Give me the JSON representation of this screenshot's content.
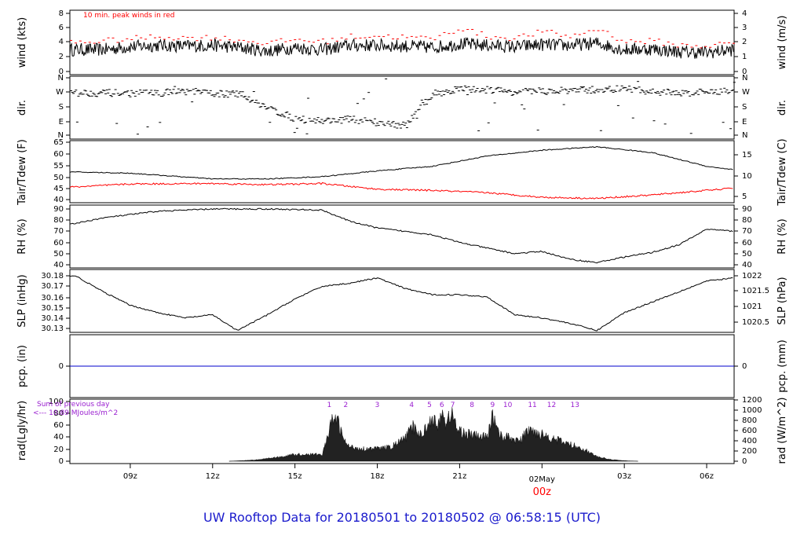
{
  "footer": {
    "title": "UW Rooftop Data for 20180501  to  20180502 @ 06:58:15  (UTC)"
  },
  "colors": {
    "primary": "#000000",
    "peak": "#ff0000",
    "dew": "#ff0000",
    "precip": "#0000cc",
    "annotation": "#9a1fd0",
    "footer": "#1a1acc"
  },
  "x_axis": {
    "ticks": [
      "09z",
      "12z",
      "15z",
      "18z",
      "21z",
      "02May",
      "03z",
      "06z"
    ],
    "tick_hours": [
      9,
      12,
      15,
      18,
      21,
      24,
      27,
      30
    ],
    "date_marker_sub": "00z",
    "range_hours": [
      6.8,
      31.0
    ]
  },
  "chart_data": [
    {
      "type": "line",
      "panel": "wind",
      "ylabel_left": "wind (kts)",
      "ylabel_right": "wind (m/s)",
      "ylim": [
        0,
        8
      ],
      "yticks_left": [
        "0",
        "2",
        "4",
        "6",
        "8"
      ],
      "yticks_right": [
        "0",
        "1",
        "2",
        "3",
        "4"
      ],
      "annotation": "10 min. peak winds in red",
      "series": [
        {
          "name": "wind",
          "x": [
            7,
            8,
            9,
            10,
            11,
            12,
            13,
            14,
            15,
            16,
            17,
            18,
            19,
            20,
            21,
            22,
            23,
            24,
            25,
            26,
            27,
            28,
            29,
            30,
            31
          ],
          "values": [
            3.0,
            3.0,
            3.4,
            3.6,
            3.5,
            3.6,
            3.3,
            2.8,
            3.3,
            3.0,
            3.6,
            3.6,
            3.5,
            3.3,
            3.8,
            3.6,
            3.4,
            3.7,
            3.6,
            3.9,
            3.0,
            3.1,
            2.7,
            2.6,
            3.0
          ]
        },
        {
          "name": "10 min. peak winds",
          "x": [
            7,
            8,
            9,
            10,
            11,
            12,
            13,
            14,
            15,
            16,
            17,
            18,
            19,
            20,
            21,
            22,
            23,
            24,
            25,
            26,
            27,
            28,
            29,
            30,
            31
          ],
          "values": [
            4.0,
            4.2,
            4.5,
            4.8,
            4.6,
            4.7,
            4.3,
            3.9,
            4.4,
            4.1,
            4.8,
            4.9,
            4.7,
            4.5,
            6.0,
            4.8,
            4.6,
            5.5,
            4.8,
            5.9,
            4.1,
            4.2,
            3.6,
            3.5,
            4.0
          ]
        }
      ]
    },
    {
      "type": "scatter",
      "panel": "dir",
      "ylabel_left": "dir.",
      "ylabel_right": "dir.",
      "ylim": [
        0,
        360
      ],
      "yticks_left": [
        "N",
        "E",
        "S",
        "W",
        "N"
      ],
      "yticks_right": [
        "N",
        "E",
        "S",
        "W",
        "N"
      ],
      "series": [
        {
          "name": "direction",
          "x": [
            7,
            8,
            9,
            10,
            11,
            12,
            13,
            14,
            15,
            16,
            17,
            18,
            19,
            20,
            21,
            22,
            23,
            24,
            25,
            26,
            27,
            28,
            29,
            30,
            31
          ],
          "values": [
            265,
            265,
            262,
            265,
            275,
            262,
            255,
            170,
            100,
            90,
            100,
            80,
            60,
            260,
            290,
            285,
            270,
            275,
            280,
            285,
            290,
            270,
            265,
            268,
            285
          ]
        }
      ]
    },
    {
      "type": "line",
      "panel": "temperature",
      "ylabel_left": "Tair/Tdew (F)",
      "ylabel_right": "Tair/Tdew (C)",
      "ylim": [
        40,
        65
      ],
      "yticks_left": [
        "40",
        "45",
        "50",
        "55",
        "60",
        "65"
      ],
      "yticks_right": [
        "5",
        "10",
        "15"
      ],
      "series": [
        {
          "name": "Tair",
          "x": [
            7,
            9,
            12,
            14,
            16,
            18,
            20,
            22,
            24,
            26,
            28,
            30,
            31
          ],
          "values": [
            52,
            51.5,
            49,
            49,
            50,
            52.5,
            54.5,
            59,
            61.5,
            63,
            60.5,
            54.5,
            53
          ]
        },
        {
          "name": "Tdew",
          "x": [
            7,
            9,
            12,
            14,
            16,
            18,
            20,
            22,
            24,
            26,
            28,
            30,
            31
          ],
          "values": [
            45.5,
            46.8,
            47,
            46.5,
            47,
            44.5,
            44,
            43,
            41,
            40.5,
            42,
            44,
            45
          ]
        }
      ]
    },
    {
      "type": "line",
      "panel": "rh",
      "ylabel_left": "RH (%)",
      "ylabel_right": "RH (%)",
      "ylim": [
        40,
        90
      ],
      "yticks_left": [
        "40",
        "50",
        "60",
        "70",
        "80",
        "90"
      ],
      "yticks_right": [
        "40",
        "50",
        "60",
        "70",
        "80",
        "90"
      ],
      "series": [
        {
          "name": "RH",
          "x": [
            7,
            8,
            10,
            12,
            14,
            16,
            17,
            18,
            19,
            20,
            21,
            22,
            23,
            24,
            25,
            26,
            27,
            28,
            29,
            30,
            31
          ],
          "values": [
            77,
            82,
            88,
            90,
            90,
            89,
            79,
            73,
            70,
            67,
            60,
            55,
            50,
            52,
            45,
            42,
            47,
            51,
            58,
            72,
            70
          ]
        }
      ]
    },
    {
      "type": "line",
      "panel": "slp",
      "ylabel_left": "SLP (inHg)",
      "ylabel_right": "SLP (hPa)",
      "ylim": [
        30.125,
        30.185
      ],
      "yticks_left": [
        "30.13",
        "30.14",
        "30.15",
        "30.16",
        "30.17",
        "30.18"
      ],
      "yticks_right": [
        "1020.5",
        "1021",
        "1021.5",
        "1022"
      ],
      "series": [
        {
          "name": "SLP",
          "x": [
            7,
            8,
            9,
            10,
            11,
            12,
            12.9,
            14,
            15,
            16,
            17,
            18,
            19,
            20,
            21,
            22,
            23,
            24,
            25,
            26,
            27,
            28,
            29,
            30,
            31
          ],
          "values": [
            30.18,
            30.165,
            30.152,
            30.145,
            30.14,
            30.143,
            30.128,
            30.143,
            30.158,
            30.17,
            30.173,
            30.178,
            30.168,
            30.162,
            30.162,
            30.16,
            30.143,
            30.14,
            30.135,
            30.128,
            30.145,
            30.155,
            30.165,
            30.175,
            30.178
          ]
        }
      ]
    },
    {
      "type": "line",
      "panel": "precip",
      "ylabel_left": "pcp. (in)",
      "ylabel_right": "pcp. (mm)",
      "yticks_left": [
        "0"
      ],
      "yticks_right": [
        "0"
      ],
      "series": [
        {
          "name": "precip",
          "x": [
            6.8,
            31
          ],
          "values": [
            0,
            0
          ]
        }
      ]
    },
    {
      "type": "area",
      "panel": "radiation",
      "ylabel_left": "rad(Lgly/hr)",
      "ylabel_right": "rad (W/m^2)",
      "ylim": [
        0,
        100
      ],
      "yticks_left": [
        "0",
        "20",
        "40",
        "60",
        "80",
        "100"
      ],
      "yticks_right": [
        "0",
        "200",
        "400",
        "600",
        "800",
        "1000",
        "1200"
      ],
      "sum_label": "Sum of previous day",
      "sum_value": "<--- 10.89 MJoules/m^2",
      "markers": [
        "1",
        "2",
        "3",
        "4",
        "5",
        "6",
        "7",
        "8",
        "9",
        "10",
        "11",
        "12",
        "13"
      ],
      "marker_hours": [
        16.25,
        16.85,
        18.0,
        19.25,
        19.9,
        20.35,
        20.75,
        21.45,
        22.2,
        22.75,
        23.65,
        24.35,
        25.2
      ],
      "series": [
        {
          "name": "radiation",
          "x": [
            12.6,
            13.5,
            14.5,
            15.0,
            15.5,
            16.0,
            16.2,
            16.35,
            16.5,
            16.8,
            17.0,
            17.5,
            18.0,
            18.5,
            19.0,
            19.3,
            19.6,
            20.0,
            20.2,
            20.35,
            20.5,
            20.7,
            20.9,
            21.2,
            21.5,
            22.0,
            22.2,
            22.5,
            22.9,
            23.2,
            23.5,
            24.0,
            24.5,
            25.0,
            25.5,
            26.0,
            26.5,
            27.0,
            27.5
          ],
          "values": [
            0,
            2,
            8,
            12,
            12,
            12,
            45,
            70,
            78,
            35,
            25,
            22,
            22,
            25,
            40,
            60,
            45,
            80,
            55,
            95,
            60,
            90,
            55,
            50,
            45,
            42,
            80,
            45,
            40,
            35,
            55,
            48,
            38,
            30,
            22,
            8,
            3,
            1,
            0
          ]
        }
      ]
    }
  ]
}
